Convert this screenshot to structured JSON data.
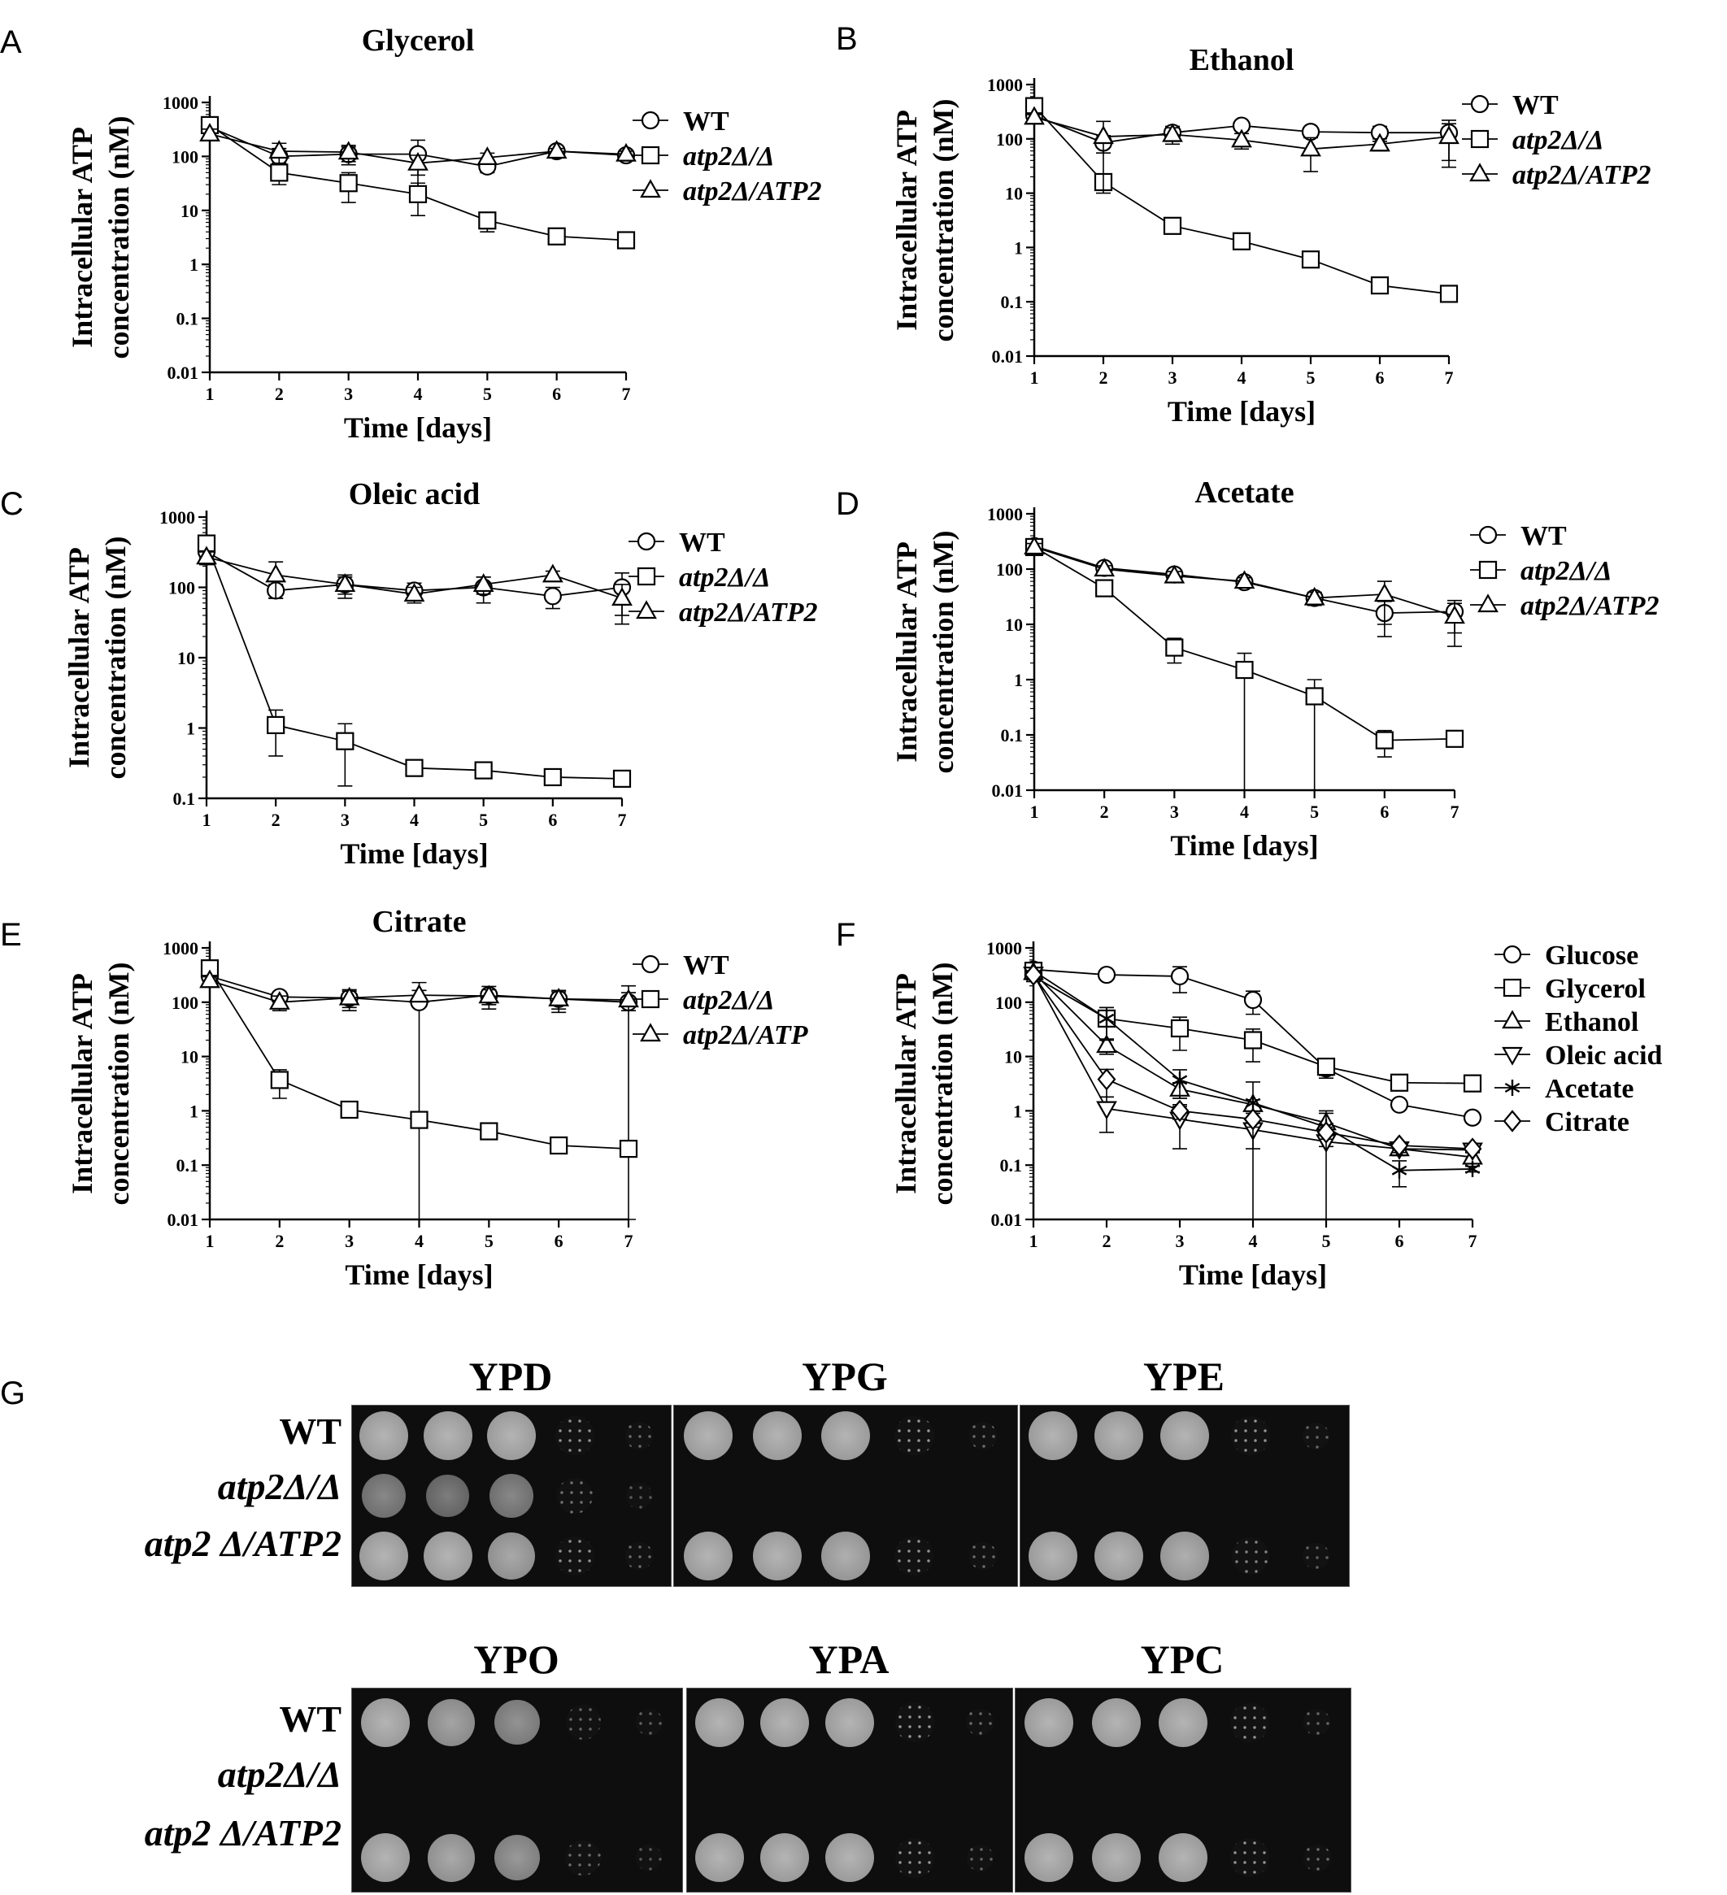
{
  "panels": [
    {
      "letter": "A"
    },
    {
      "letter": "B"
    },
    {
      "letter": "C"
    },
    {
      "letter": "D"
    },
    {
      "letter": "E"
    },
    {
      "letter": "F"
    },
    {
      "letter": "G"
    }
  ],
  "chart_data": [
    {
      "id": "A",
      "type": "line",
      "title": "Glycerol",
      "xlabel": "Time [days]",
      "ylabel": [
        "Intracellular ATP",
        "concentration (nM)"
      ],
      "yscale": "log",
      "ylim": [
        0.01,
        1000
      ],
      "yticks": [
        "0.01",
        "0.1",
        "1",
        "10",
        "100",
        "1000"
      ],
      "x": [
        1,
        2,
        3,
        4,
        5,
        6,
        7
      ],
      "series": [
        {
          "name": "WT",
          "marker": "circle",
          "italic": false,
          "values": [
            350,
            100,
            110,
            110,
            65,
            125,
            105
          ],
          "err": [
            80,
            40,
            40,
            90,
            15,
            15,
            10
          ]
        },
        {
          "name": "atp2Δ/Δ",
          "marker": "square",
          "italic": true,
          "values": [
            380,
            50,
            32,
            20,
            6.5,
            3.3,
            2.8
          ],
          "err": [
            70,
            20,
            18,
            12,
            2.5,
            0.4,
            0.3
          ]
        },
        {
          "name": "atp2Δ/ATP2",
          "marker": "triangle",
          "italic": true,
          "values": [
            260,
            125,
            120,
            75,
            95,
            125,
            110
          ],
          "err": [
            60,
            50,
            40,
            30,
            20,
            15,
            15
          ]
        }
      ]
    },
    {
      "id": "B",
      "type": "line",
      "title": "Ethanol",
      "xlabel": "Time [days]",
      "ylabel": [
        "Intracellular ATP",
        "concentration (nM)"
      ],
      "yscale": "log",
      "ylim": [
        0.01,
        1000
      ],
      "yticks": [
        "0.01",
        "0.1",
        "1",
        "10",
        "100",
        "1000"
      ],
      "x": [
        1,
        2,
        3,
        4,
        5,
        6,
        7
      ],
      "series": [
        {
          "name": "WT",
          "marker": "circle",
          "italic": false,
          "values": [
            270,
            85,
            130,
            175,
            135,
            130,
            130
          ],
          "err": [
            60,
            30,
            40,
            20,
            30,
            40,
            90
          ]
        },
        {
          "name": "atp2Δ/Δ",
          "marker": "square",
          "italic": true,
          "values": [
            400,
            16,
            2.5,
            1.3,
            0.6,
            0.2,
            0.14
          ],
          "err": [
            100,
            4,
            0.5,
            0.2,
            0.1,
            0.03,
            0.02
          ]
        },
        {
          "name": "atp2Δ/ATP2",
          "marker": "triangle",
          "italic": true,
          "values": [
            250,
            110,
            120,
            95,
            65,
            80,
            110
          ],
          "err": [
            50,
            100,
            40,
            30,
            40,
            20,
            80
          ]
        }
      ]
    },
    {
      "id": "C",
      "type": "line",
      "title": "Oleic acid",
      "xlabel": "Time [days]",
      "ylabel": [
        "Intracellular ATP",
        "concentration (nM)"
      ],
      "yscale": "log",
      "ylim": [
        0.1,
        1000
      ],
      "yticks": [
        "0.1",
        "1",
        "10",
        "100",
        "1000"
      ],
      "x": [
        1,
        2,
        3,
        4,
        5,
        6,
        7
      ],
      "series": [
        {
          "name": "WT",
          "marker": "circle",
          "italic": false,
          "values": [
            320,
            90,
            110,
            90,
            100,
            75,
            100
          ],
          "err": [
            60,
            20,
            30,
            25,
            40,
            25,
            60
          ]
        },
        {
          "name": "atp2Δ/Δ",
          "marker": "square",
          "italic": true,
          "values": [
            420,
            1.1,
            0.65,
            0.27,
            0.25,
            0.2,
            0.19
          ],
          "err": [
            100,
            0.7,
            0.5,
            0.05,
            0.03,
            0.02,
            0.02
          ]
        },
        {
          "name": "atp2Δ/ATP2",
          "marker": "triangle",
          "italic": true,
          "values": [
            270,
            150,
            110,
            80,
            110,
            150,
            70
          ],
          "err": [
            60,
            80,
            40,
            20,
            30,
            20,
            40
          ]
        }
      ]
    },
    {
      "id": "D",
      "type": "line",
      "title": "Acetate",
      "xlabel": "Time [days]",
      "ylabel": [
        "Intracellular ATP",
        "concentration (nM)"
      ],
      "yscale": "log",
      "ylim": [
        0.01,
        1000
      ],
      "yticks": [
        "0.01",
        "0.1",
        "1",
        "10",
        "100",
        "1000"
      ],
      "x": [
        1,
        2,
        3,
        4,
        5,
        6,
        7
      ],
      "series": [
        {
          "name": "WT",
          "marker": "circle",
          "italic": false,
          "values": [
            260,
            105,
            80,
            58,
            30,
            16,
            17
          ],
          "err": [
            40,
            15,
            15,
            10,
            6,
            10,
            10
          ]
        },
        {
          "name": "atp2Δ/Δ",
          "marker": "square",
          "italic": true,
          "values": [
            250,
            45,
            3.8,
            1.5,
            0.5,
            0.08,
            0.085
          ],
          "err": [
            40,
            8,
            1.8,
            1.5,
            0.5,
            0.04,
            0.01
          ]
        },
        {
          "name": "atp2Δ/ATP2",
          "marker": "triangle",
          "italic": true,
          "values": [
            250,
            100,
            75,
            60,
            30,
            35,
            14
          ],
          "err": [
            40,
            15,
            15,
            10,
            8,
            25,
            10
          ]
        }
      ]
    },
    {
      "id": "E",
      "type": "line",
      "title": "Citrate",
      "xlabel": "Time [days]",
      "ylabel": [
        "Intracellular ATP",
        "concentration (nM)"
      ],
      "yscale": "log",
      "ylim": [
        0.01,
        1000
      ],
      "yticks": [
        "0.01",
        "0.1",
        "1",
        "10",
        "100",
        "1000"
      ],
      "x": [
        1,
        2,
        3,
        4,
        5,
        6,
        7
      ],
      "series": [
        {
          "name": "WT",
          "marker": "circle",
          "italic": false,
          "values": [
            300,
            125,
            120,
            100,
            135,
            115,
            100
          ],
          "err": [
            60,
            20,
            50,
            130,
            60,
            50,
            100
          ]
        },
        {
          "name": "atp2Δ/Δ",
          "marker": "square",
          "italic": true,
          "values": [
            420,
            3.7,
            1.05,
            0.68,
            0.42,
            0.23,
            0.2
          ],
          "err": [
            100,
            2,
            0.1,
            0.05,
            0.05,
            0.03,
            0.02
          ]
        },
        {
          "name": "atp2Δ/ATP",
          "marker": "triangle",
          "italic": true,
          "values": [
            250,
            100,
            120,
            135,
            130,
            115,
            110
          ],
          "err": [
            60,
            30,
            40,
            30,
            40,
            40,
            40
          ]
        }
      ]
    },
    {
      "id": "F",
      "type": "line",
      "title": "",
      "xlabel": "Time [days]",
      "ylabel": [
        "Intracellular ATP",
        "concentration (nM)"
      ],
      "yscale": "log",
      "ylim": [
        0.01,
        1000
      ],
      "yticks": [
        "0.01",
        "0.1",
        "1",
        "10",
        "100",
        "1000"
      ],
      "x": [
        1,
        2,
        3,
        4,
        5,
        6,
        7
      ],
      "series": [
        {
          "name": "Glucose",
          "marker": "circle",
          "italic": false,
          "values": [
            400,
            320,
            300,
            110,
            6,
            1.3,
            0.75
          ],
          "err": [
            80,
            40,
            150,
            50,
            2,
            0.1,
            0.1
          ]
        },
        {
          "name": "Glycerol",
          "marker": "square",
          "italic": false,
          "values": [
            380,
            50,
            33,
            20,
            6.5,
            3.3,
            3.2
          ],
          "err": [
            80,
            30,
            20,
            12,
            2,
            0.3,
            0.3
          ]
        },
        {
          "name": "Ethanol",
          "marker": "triangle",
          "italic": false,
          "values": [
            350,
            16,
            2.5,
            1.3,
            0.6,
            0.2,
            0.14
          ],
          "err": [
            60,
            5,
            0.8,
            0.3,
            0.3,
            0.05,
            0.03
          ]
        },
        {
          "name": "Oleic acid",
          "marker": "triangle-down",
          "italic": false,
          "values": [
            330,
            1.1,
            0.7,
            0.45,
            0.27,
            0.2,
            0.19
          ],
          "err": [
            60,
            0.7,
            0.5,
            0.25,
            0.05,
            0.03,
            0.02
          ]
        },
        {
          "name": "Acetate",
          "marker": "asterisk",
          "italic": false,
          "values": [
            300,
            50,
            3.7,
            1.4,
            0.5,
            0.08,
            0.085
          ],
          "err": [
            60,
            30,
            2,
            2,
            0.5,
            0.04,
            0.01
          ]
        },
        {
          "name": "Citrate",
          "marker": "diamond",
          "italic": false,
          "values": [
            320,
            3.8,
            1.0,
            0.7,
            0.4,
            0.23,
            0.2
          ],
          "err": [
            60,
            2,
            0.3,
            0.2,
            0.1,
            0.03,
            0.02
          ]
        }
      ]
    }
  ],
  "spot_assay": {
    "row_labels": [
      {
        "text": "WT",
        "italic": false
      },
      {
        "text": "atp2Δ/Δ",
        "italic": true
      },
      {
        "text": "atp2 Δ/ATP2",
        "italic": true
      }
    ],
    "plates": [
      {
        "title": "YPD",
        "growth": [
          [
            1,
            1,
            1,
            0.7,
            0.35
          ],
          [
            0.6,
            0.5,
            0.6,
            0.4,
            0.2
          ],
          [
            1,
            1,
            0.9,
            0.7,
            0.35
          ]
        ]
      },
      {
        "title": "YPG",
        "growth": [
          [
            1,
            1,
            1,
            0.75,
            0.35
          ],
          [
            0,
            0,
            0,
            0,
            0
          ],
          [
            1,
            1,
            0.95,
            0.7,
            0.35
          ]
        ]
      },
      {
        "title": "YPE",
        "growth": [
          [
            1,
            1,
            1,
            0.7,
            0.3
          ],
          [
            0,
            0,
            0,
            0,
            0
          ],
          [
            1,
            1,
            0.95,
            0.55,
            0.25
          ]
        ]
      },
      {
        "title": "YPO",
        "growth": [
          [
            1,
            0.85,
            0.7,
            0.3,
            0.25
          ],
          [
            0,
            0,
            0,
            0,
            0
          ],
          [
            1,
            0.9,
            0.75,
            0.35,
            0.2
          ]
        ]
      },
      {
        "title": "YPA",
        "growth": [
          [
            1,
            1,
            1,
            0.75,
            0.35
          ],
          [
            0,
            0,
            0,
            0,
            0
          ],
          [
            1,
            1,
            1,
            0.75,
            0.3
          ]
        ]
      },
      {
        "title": "YPC",
        "growth": [
          [
            1,
            1,
            1,
            0.7,
            0.3
          ],
          [
            0,
            0,
            0,
            0,
            0
          ],
          [
            1,
            1,
            1,
            0.7,
            0.35
          ]
        ]
      }
    ]
  }
}
